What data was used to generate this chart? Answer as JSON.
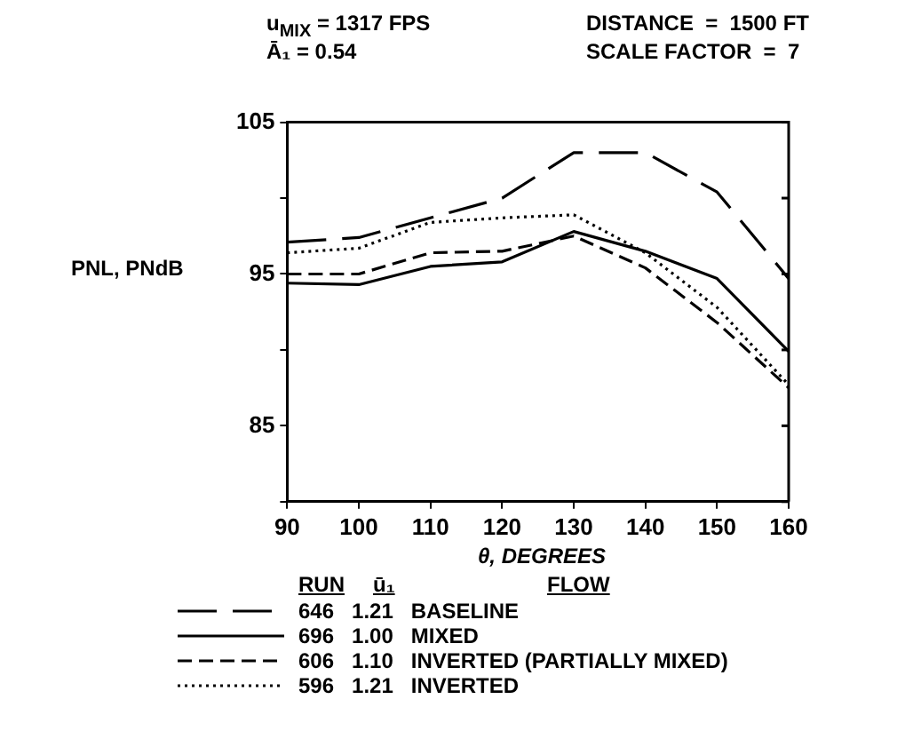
{
  "chart_data": {
    "type": "line",
    "xlabel": "θ, DEGREES",
    "ylabel": "PNL, PNdB",
    "annotations": [
      "u$_{MIX}$ = 1317 FPS",
      "Ā₁ = 0.54",
      "DISTANCE  =  1500 FT",
      "SCALE FACTOR  =  7"
    ],
    "legend_title": [
      "RUN",
      "ū₁",
      "FLOW"
    ],
    "x": [
      90,
      100,
      110,
      120,
      130,
      140,
      150,
      160
    ],
    "series": [
      {
        "name": "646   1.21   BASELINE",
        "color": "#000000",
        "line_style": "dashed",
        "values": [
          97.1,
          97.4,
          98.7,
          100.0,
          103.0,
          103.0,
          100.4,
          94.7
        ]
      },
      {
        "name": "696   1.00   MIXED",
        "color": "#000000",
        "line_style": "solid",
        "values": [
          94.4,
          94.3,
          95.5,
          95.8,
          97.8,
          96.5,
          94.7,
          89.9
        ]
      },
      {
        "name": "606   1.10   INVERTED (PARTIALLY MIXED)",
        "color": "#000000",
        "line_style": "dashed",
        "values": [
          95.0,
          95.0,
          96.4,
          96.5,
          97.5,
          95.4,
          91.8,
          87.5
        ]
      },
      {
        "name": "596   1.21   INVERTED",
        "color": "#000000",
        "line_style": "dotted",
        "values": [
          96.4,
          96.7,
          98.4,
          98.7,
          98.9,
          96.4,
          92.8,
          87.7
        ]
      }
    ],
    "xlim": [
      90,
      160
    ],
    "xticks": [
      90,
      100,
      110,
      120,
      130,
      140,
      150,
      160
    ],
    "ylim": [
      80,
      105
    ],
    "yticks": [
      {
        "value": 80,
        "label": null
      },
      85,
      {
        "value": 90,
        "label": null
      },
      95,
      {
        "value": 100,
        "label": null
      },
      105
    ],
    "grid": false,
    "legend": "bottom",
    "marker": "none"
  }
}
